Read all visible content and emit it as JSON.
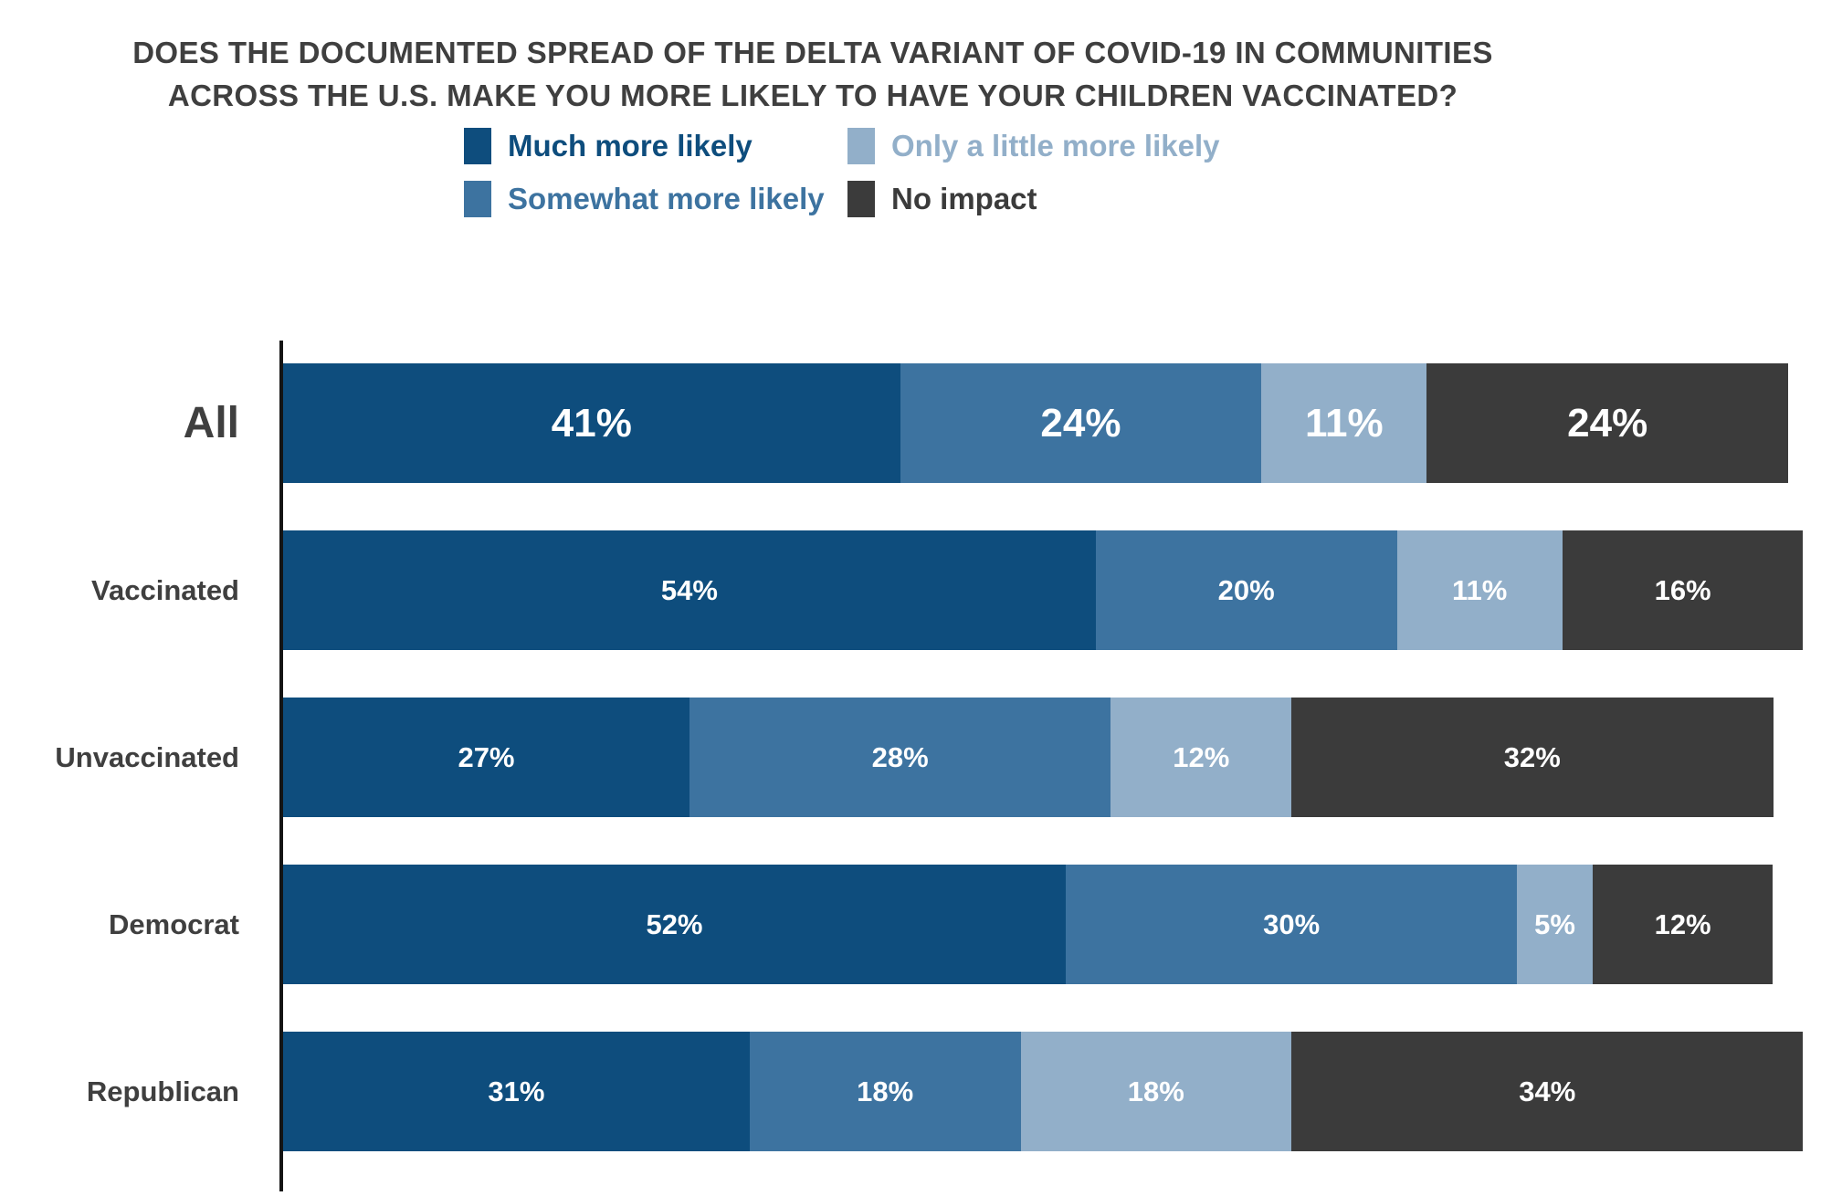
{
  "title": {
    "line1": "DOES THE DOCUMENTED SPREAD OF THE DELTA VARIANT OF COVID-19 IN COMMUNITIES",
    "line2": "ACROSS THE U.S. MAKE YOU MORE LIKELY TO HAVE YOUR CHILDREN VACCINATED?"
  },
  "colors": {
    "much_more": "#0E4D7D",
    "somewhat_more": "#3D73A0",
    "little_more": "#92AFC9",
    "no_impact": "#3B3B3B",
    "text": "#3F3F3F",
    "axis": "#141414",
    "value_label": "#FFFFFF"
  },
  "legend": {
    "items": [
      {
        "label": "Much more likely",
        "color": "#0E4D7D"
      },
      {
        "label": "Only a little more likely",
        "color": "#92AFC9"
      },
      {
        "label": "Somewhat more likely",
        "color": "#3D73A0"
      },
      {
        "label": "No impact",
        "color": "#3B3B3B"
      }
    ]
  },
  "chart_data": {
    "type": "bar",
    "orientation": "horizontal",
    "stacked": true,
    "value_suffix": "%",
    "xlim": [
      0,
      100
    ],
    "grid": false,
    "legend_position": "top",
    "title": "Does the documented spread of the Delta variant of COVID-19 in communities across the U.S. make you more likely to have your children vaccinated?",
    "categories": [
      "All",
      "Vaccinated",
      "Unvaccinated",
      "Democrat",
      "Republican"
    ],
    "series": [
      {
        "name": "Much more likely",
        "color": "#0E4D7D",
        "values": [
          41,
          54,
          27,
          52,
          31
        ]
      },
      {
        "name": "Somewhat more likely",
        "color": "#3D73A0",
        "values": [
          24,
          20,
          28,
          30,
          18
        ]
      },
      {
        "name": "Only a little more likely",
        "color": "#92AFC9",
        "values": [
          11,
          11,
          12,
          5,
          18
        ]
      },
      {
        "name": "No impact",
        "color": "#3B3B3B",
        "values": [
          24,
          16,
          32,
          12,
          34
        ]
      }
    ]
  }
}
